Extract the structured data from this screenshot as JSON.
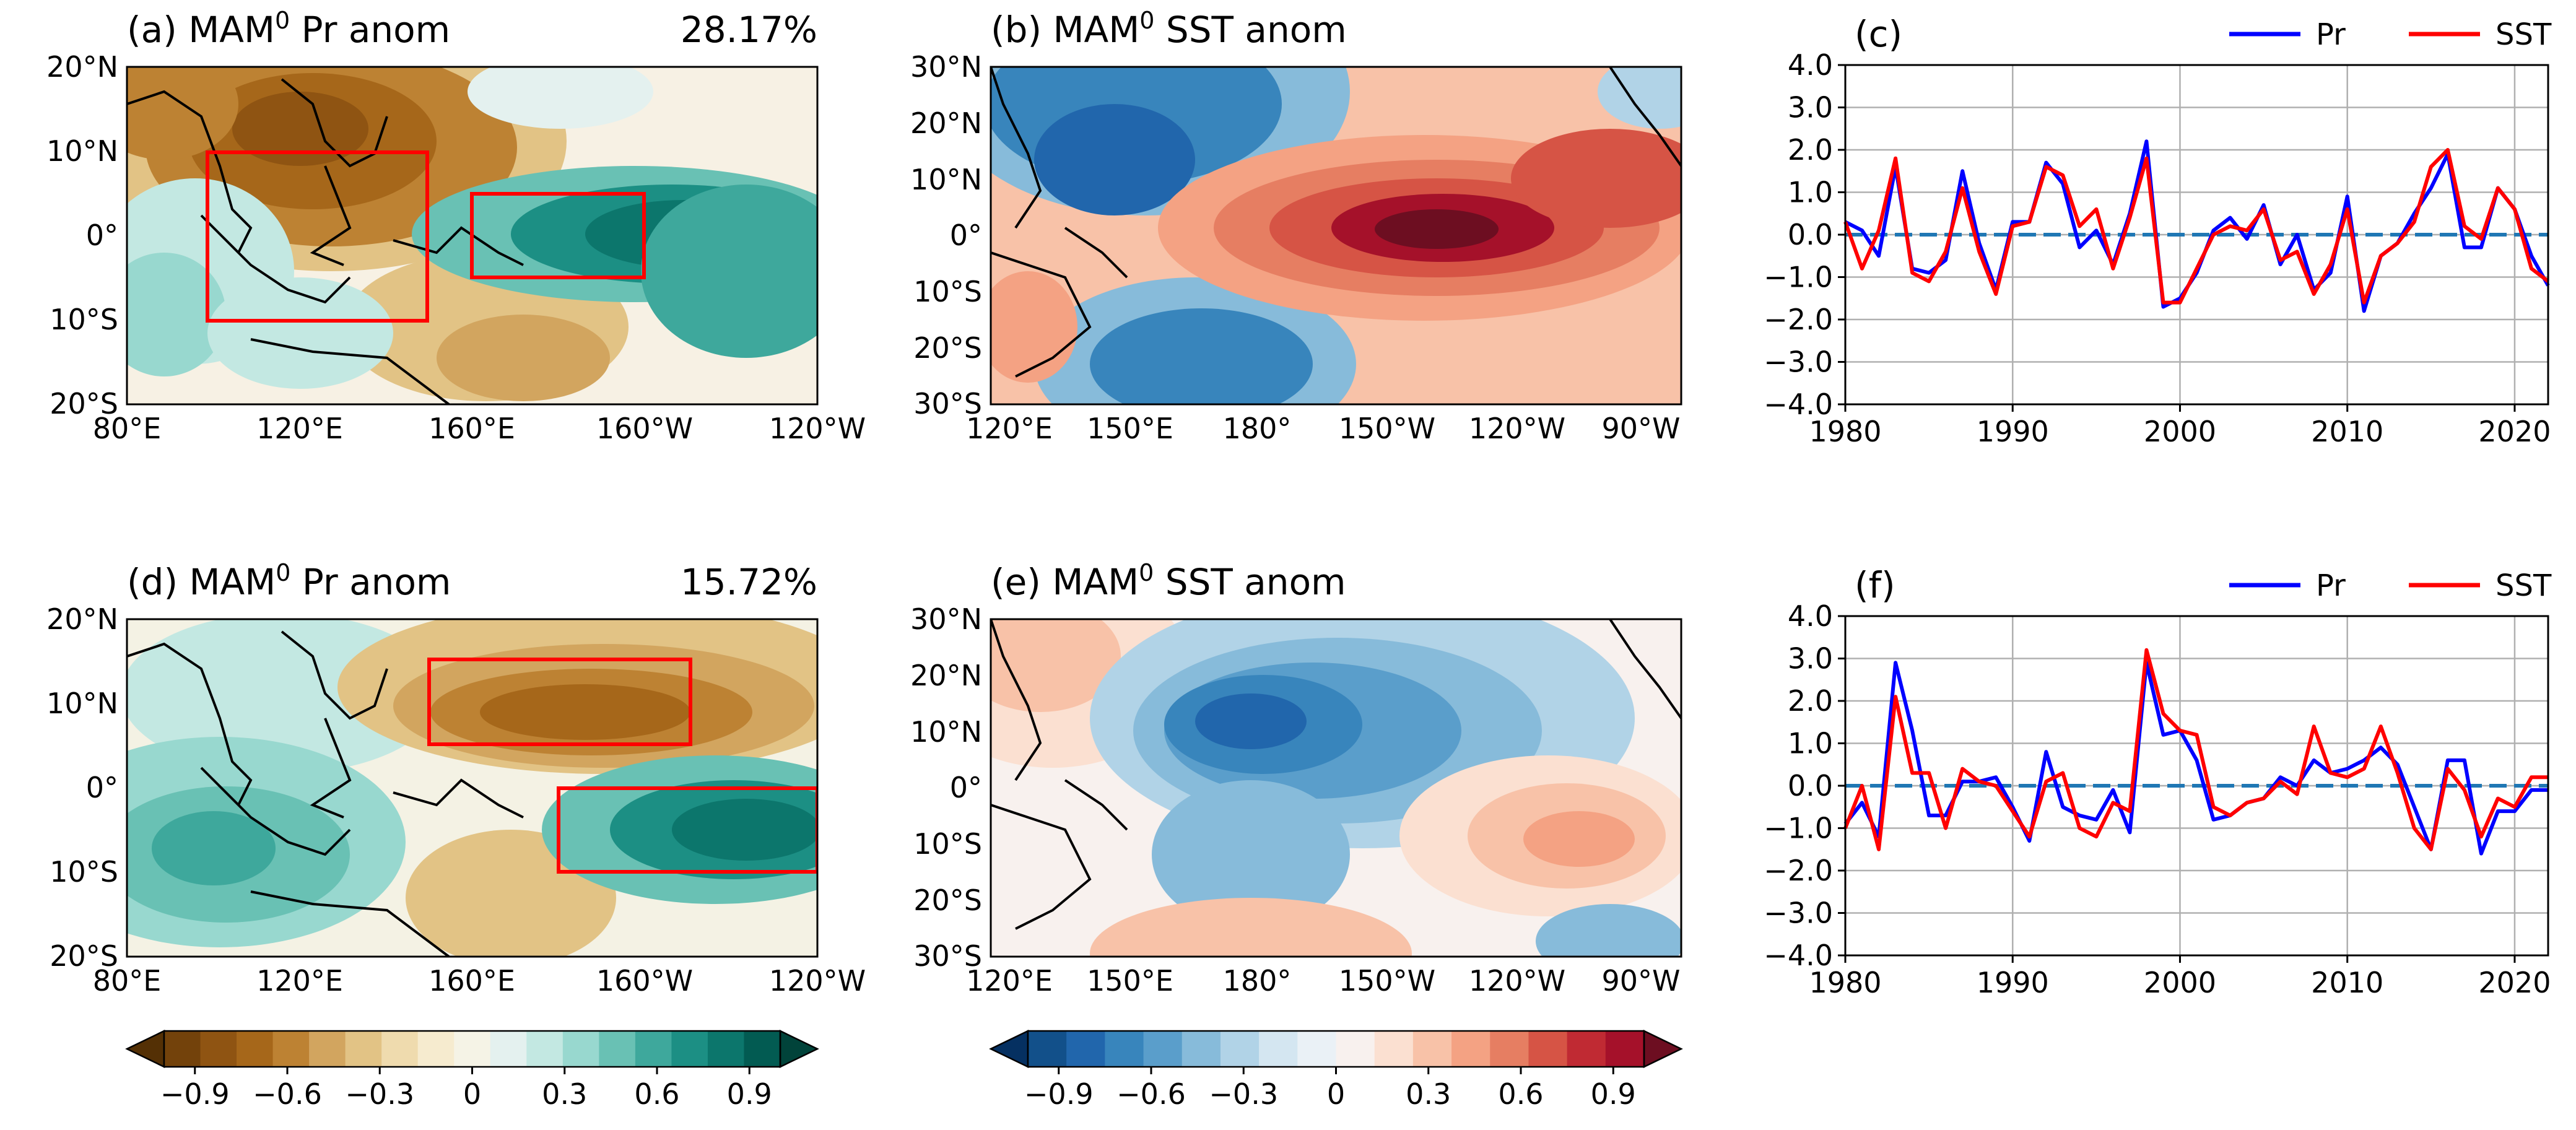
{
  "colors": {
    "pr_scale": [
      "#543005",
      "#73420b",
      "#8f5412",
      "#a6671a",
      "#bd8233",
      "#d2a55f",
      "#e2c385",
      "#efdbae",
      "#f6ebcf",
      "#f5f3e6",
      "#e4f1ef",
      "#c3e8e2",
      "#98d8cf",
      "#69c1b4",
      "#3ea89c",
      "#1c8f84",
      "#0c766c",
      "#025b52",
      "#01433a"
    ],
    "sst_scale": [
      "#053061",
      "#12508a",
      "#2166ac",
      "#3885bc",
      "#5a9ecb",
      "#87bbda",
      "#b1d3e7",
      "#d4e6f1",
      "#eaf1f6",
      "#f8f1ee",
      "#fbe0d1",
      "#f8c2a8",
      "#f4a283",
      "#e67e62",
      "#d65445",
      "#c02a33",
      "#a5112a",
      "#6d0e21"
    ],
    "pr_line": "#0000ff",
    "sst_line": "#ff0000",
    "zero_line": "#1f77b4",
    "box": "#ff0000"
  },
  "panels": {
    "a": {
      "title": "(a) MAM",
      "sup": "0",
      "title_rest": " Pr anom",
      "pct": "28.17%",
      "yticks": [
        "20°N",
        "10°N",
        "0°",
        "10°S",
        "20°S"
      ],
      "xticks": [
        "80°E",
        "120°E",
        "160°E",
        "160°W",
        "120°W"
      ]
    },
    "b": {
      "title": "(b) MAM",
      "sup": "0",
      "title_rest": " SST anom",
      "yticks": [
        "30°N",
        "20°N",
        "10°N",
        "0°",
        "10°S",
        "20°S",
        "30°S"
      ],
      "xticks": [
        "120°E",
        "150°E",
        "180°",
        "150°W",
        "120°W",
        "90°W"
      ]
    },
    "d": {
      "title": "(d) MAM",
      "sup": "0",
      "title_rest": " Pr anom",
      "pct": "15.72%",
      "yticks": [
        "20°N",
        "10°N",
        "0°",
        "10°S",
        "20°S"
      ],
      "xticks": [
        "80°E",
        "120°E",
        "160°E",
        "160°W",
        "120°W"
      ]
    },
    "e": {
      "title": "(e) MAM",
      "sup": "0",
      "title_rest": " SST anom",
      "yticks": [
        "30°N",
        "20°N",
        "10°N",
        "0°",
        "10°S",
        "20°S",
        "30°S"
      ],
      "xticks": [
        "120°E",
        "150°E",
        "180°",
        "150°W",
        "120°W",
        "90°W"
      ]
    }
  },
  "colorbars": {
    "pr": {
      "ticks": [
        "−0.9",
        "−0.6",
        "−0.3",
        "0",
        "0.3",
        "0.6",
        "0.9"
      ]
    },
    "sst": {
      "ticks": [
        "−0.9",
        "−0.6",
        "−0.3",
        "0",
        "0.3",
        "0.6",
        "0.9"
      ]
    }
  },
  "chart_data": [
    {
      "panel": "c",
      "type": "line",
      "title": "(c)",
      "x": [
        1980,
        1981,
        1982,
        1983,
        1984,
        1985,
        1986,
        1987,
        1988,
        1989,
        1990,
        1991,
        1992,
        1993,
        1994,
        1995,
        1996,
        1997,
        1998,
        1999,
        2000,
        2001,
        2002,
        2003,
        2004,
        2005,
        2006,
        2007,
        2008,
        2009,
        2010,
        2011,
        2012,
        2013,
        2014,
        2015,
        2016,
        2017,
        2018,
        2019,
        2020,
        2021,
        2022
      ],
      "series": [
        {
          "name": "Pr",
          "values": [
            0.3,
            0.1,
            -0.5,
            1.6,
            -0.8,
            -0.9,
            -0.6,
            1.5,
            -0.2,
            -1.3,
            0.3,
            0.3,
            1.7,
            1.2,
            -0.3,
            0.1,
            -0.7,
            0.5,
            2.2,
            -1.7,
            -1.5,
            -0.9,
            0.1,
            0.4,
            -0.1,
            0.7,
            -0.7,
            0.0,
            -1.3,
            -0.9,
            0.9,
            -1.8,
            -0.5,
            -0.2,
            0.5,
            1.1,
            1.9,
            -0.3,
            -0.3,
            1.1,
            0.6,
            -0.5,
            -1.2
          ]
        },
        {
          "name": "SST",
          "values": [
            0.3,
            -0.8,
            0.1,
            1.8,
            -0.9,
            -1.1,
            -0.4,
            1.1,
            -0.4,
            -1.4,
            0.2,
            0.3,
            1.6,
            1.4,
            0.2,
            0.6,
            -0.8,
            0.4,
            1.8,
            -1.6,
            -1.6,
            -0.8,
            0.0,
            0.2,
            0.1,
            0.6,
            -0.6,
            -0.4,
            -1.4,
            -0.7,
            0.6,
            -1.6,
            -0.5,
            -0.2,
            0.3,
            1.6,
            2.0,
            0.2,
            -0.1,
            1.1,
            0.6,
            -0.8,
            -1.1
          ]
        }
      ],
      "xlim": [
        1980,
        2022
      ],
      "ylim": [
        -4.0,
        4.0
      ],
      "yticks": [
        "4.0",
        "3.0",
        "2.0",
        "1.0",
        "0.0",
        "−1.0",
        "−2.0",
        "−3.0",
        "−4.0"
      ],
      "xticks": [
        "1980",
        "1990",
        "2000",
        "2010",
        "2020"
      ],
      "legend": [
        "Pr",
        "SST"
      ],
      "grid": true
    },
    {
      "panel": "f",
      "type": "line",
      "title": "(f)",
      "x": [
        1980,
        1981,
        1982,
        1983,
        1984,
        1985,
        1986,
        1987,
        1988,
        1989,
        1990,
        1991,
        1992,
        1993,
        1994,
        1995,
        1996,
        1997,
        1998,
        1999,
        2000,
        2001,
        2002,
        2003,
        2004,
        2005,
        2006,
        2007,
        2008,
        2009,
        2010,
        2011,
        2012,
        2013,
        2014,
        2015,
        2016,
        2017,
        2018,
        2019,
        2020,
        2021,
        2022
      ],
      "series": [
        {
          "name": "Pr",
          "values": [
            -0.9,
            -0.4,
            -1.2,
            2.9,
            1.3,
            -0.7,
            -0.7,
            0.1,
            0.1,
            0.2,
            -0.5,
            -1.3,
            0.8,
            -0.5,
            -0.7,
            -0.8,
            -0.1,
            -1.1,
            2.9,
            1.2,
            1.3,
            0.6,
            -0.8,
            -0.7,
            -0.4,
            -0.3,
            0.2,
            0.0,
            0.6,
            0.3,
            0.4,
            0.6,
            0.9,
            0.5,
            -0.5,
            -1.5,
            0.6,
            0.6,
            -1.6,
            -0.6,
            -0.6,
            -0.1,
            -0.1
          ]
        },
        {
          "name": "SST",
          "values": [
            -1.0,
            0.0,
            -1.5,
            2.1,
            0.3,
            0.3,
            -1.0,
            0.4,
            0.1,
            0.0,
            -0.6,
            -1.2,
            0.1,
            0.3,
            -1.0,
            -1.2,
            -0.4,
            -0.6,
            3.2,
            1.7,
            1.3,
            1.2,
            -0.5,
            -0.7,
            -0.4,
            -0.3,
            0.1,
            -0.2,
            1.4,
            0.3,
            0.2,
            0.4,
            1.4,
            0.3,
            -1.0,
            -1.5,
            0.4,
            -0.1,
            -1.2,
            -0.3,
            -0.5,
            0.2,
            0.2
          ]
        }
      ],
      "xlim": [
        1980,
        2022
      ],
      "ylim": [
        -4.0,
        4.0
      ],
      "yticks": [
        "4.0",
        "3.0",
        "2.0",
        "1.0",
        "0.0",
        "−1.0",
        "−2.0",
        "−3.0",
        "−4.0"
      ],
      "xticks": [
        "1980",
        "1990",
        "2000",
        "2010",
        "2020"
      ],
      "legend": [
        "Pr",
        "SST"
      ],
      "grid": true
    }
  ]
}
